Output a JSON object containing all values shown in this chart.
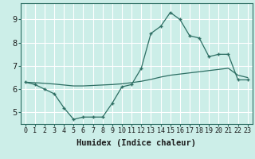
{
  "title": "",
  "xlabel": "Humidex (Indice chaleur)",
  "ylabel": "",
  "background_color": "#cceee8",
  "line_color": "#2d6e63",
  "grid_color": "#b0ddd8",
  "x_main": [
    0,
    1,
    2,
    3,
    4,
    5,
    6,
    7,
    8,
    9,
    10,
    11,
    12,
    13,
    14,
    15,
    16,
    17,
    18,
    19,
    20,
    21,
    22,
    23
  ],
  "y_main": [
    6.3,
    6.2,
    6.0,
    5.8,
    5.2,
    4.7,
    4.8,
    4.8,
    4.8,
    5.4,
    6.1,
    6.2,
    6.9,
    8.4,
    8.7,
    9.3,
    9.0,
    8.3,
    8.2,
    7.4,
    7.5,
    7.5,
    6.4,
    6.4
  ],
  "x_trend": [
    0,
    1,
    2,
    3,
    4,
    5,
    6,
    7,
    8,
    9,
    10,
    11,
    12,
    13,
    14,
    15,
    16,
    17,
    18,
    19,
    20,
    21,
    22,
    23
  ],
  "y_trend": [
    6.3,
    6.28,
    6.25,
    6.22,
    6.18,
    6.14,
    6.14,
    6.16,
    6.18,
    6.2,
    6.23,
    6.28,
    6.34,
    6.42,
    6.52,
    6.6,
    6.65,
    6.7,
    6.75,
    6.8,
    6.85,
    6.9,
    6.6,
    6.5
  ],
  "xlim": [
    -0.5,
    23.5
  ],
  "ylim": [
    4.5,
    9.7
  ],
  "yticks": [
    5,
    6,
    7,
    8,
    9
  ],
  "xticks": [
    0,
    1,
    2,
    3,
    4,
    5,
    6,
    7,
    8,
    9,
    10,
    11,
    12,
    13,
    14,
    15,
    16,
    17,
    18,
    19,
    20,
    21,
    22,
    23
  ],
  "xlabel_fontsize": 7.5,
  "tick_fontsize": 6.0,
  "ytick_fontsize": 7.0
}
